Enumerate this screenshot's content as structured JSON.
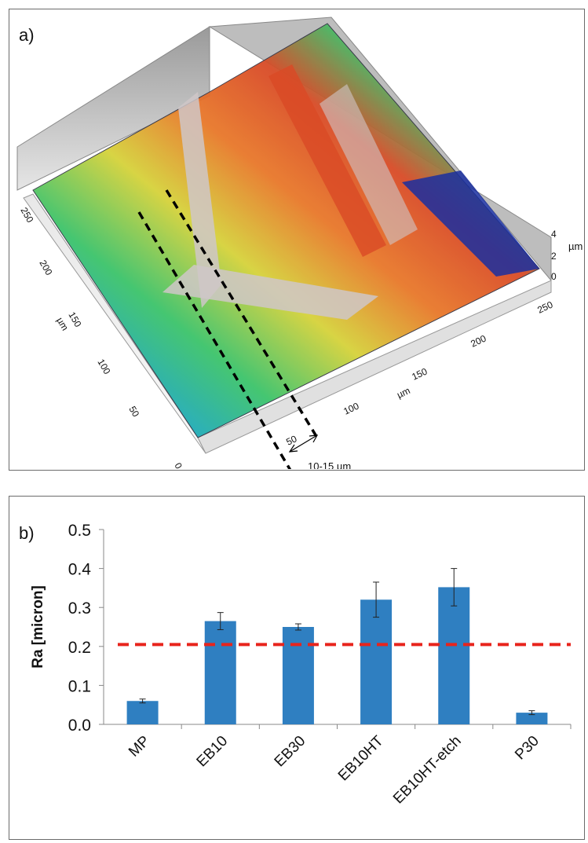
{
  "panel_a": {
    "letter": "a)",
    "axis_y_ticks": [
      "250",
      "200",
      "150",
      "100",
      "50",
      "0"
    ],
    "axis_y_unit": "µm",
    "axis_x_ticks": [
      "0",
      "50",
      "100",
      "150",
      "200",
      "250"
    ],
    "axis_x_unit": "µm",
    "axis_z_ticks": [
      "4",
      "2",
      "0"
    ],
    "axis_z_unit": "µm",
    "annotation": "10-15 µm",
    "surface_colors": [
      "#1a2fa0",
      "#1aa6c8",
      "#3cc36a",
      "#d6d23a",
      "#e8782a",
      "#d94a26",
      "#cfc7c8"
    ]
  },
  "panel_b": {
    "letter": "b)",
    "chart_data": {
      "type": "bar",
      "categories": [
        "MP",
        "EB10",
        "EB30",
        "EB10HT",
        "EB10HT-etch",
        "P30"
      ],
      "values": [
        0.06,
        0.265,
        0.25,
        0.32,
        0.352,
        0.03
      ],
      "errors": [
        0.005,
        0.022,
        0.008,
        0.045,
        0.048,
        0.005
      ],
      "ylabel": "Ra [micron]",
      "ylim": [
        0,
        0.5
      ],
      "yticks": [
        "0.0",
        "0.1",
        "0.2",
        "0.3",
        "0.4",
        "0.5"
      ],
      "reference_line": 0.205,
      "bar_color": "#2f7fc1",
      "reference_color": "#e8241c",
      "grid": false
    }
  }
}
